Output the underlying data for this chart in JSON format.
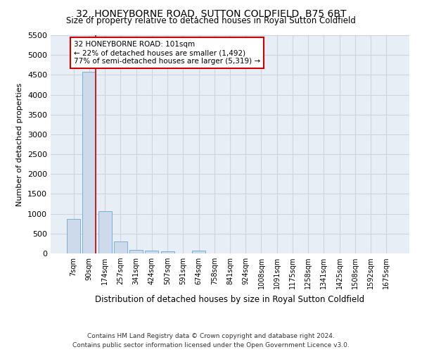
{
  "title": "32, HONEYBORNE ROAD, SUTTON COLDFIELD, B75 6BT",
  "subtitle": "Size of property relative to detached houses in Royal Sutton Coldfield",
  "xlabel": "Distribution of detached houses by size in Royal Sutton Coldfield",
  "ylabel": "Number of detached properties",
  "footer_line1": "Contains HM Land Registry data © Crown copyright and database right 2024.",
  "footer_line2": "Contains public sector information licensed under the Open Government Licence v3.0.",
  "annotation_title": "32 HONEYBORNE ROAD: 101sqm",
  "annotation_line2": "← 22% of detached houses are smaller (1,492)",
  "annotation_line3": "77% of semi-detached houses are larger (5,319) →",
  "bin_labels": [
    "7sqm",
    "90sqm",
    "174sqm",
    "257sqm",
    "341sqm",
    "424sqm",
    "507sqm",
    "591sqm",
    "674sqm",
    "758sqm",
    "841sqm",
    "924sqm",
    "1008sqm",
    "1091sqm",
    "1175sqm",
    "1258sqm",
    "1341sqm",
    "1425sqm",
    "1508sqm",
    "1592sqm",
    "1675sqm"
  ],
  "bar_values": [
    870,
    4580,
    1060,
    295,
    95,
    75,
    55,
    0,
    65,
    0,
    0,
    0,
    0,
    0,
    0,
    0,
    0,
    0,
    0,
    0,
    0
  ],
  "bar_color": "#ccdaeb",
  "bar_edge_color": "#7bafd4",
  "annotation_box_color": "#ffffff",
  "annotation_box_edge": "#cc0000",
  "vline_color": "#cc0000",
  "grid_color": "#ccd5e0",
  "bg_color": "#e8eef5",
  "ylim": [
    0,
    5500
  ],
  "yticks": [
    0,
    500,
    1000,
    1500,
    2000,
    2500,
    3000,
    3500,
    4000,
    4500,
    5000,
    5500
  ]
}
